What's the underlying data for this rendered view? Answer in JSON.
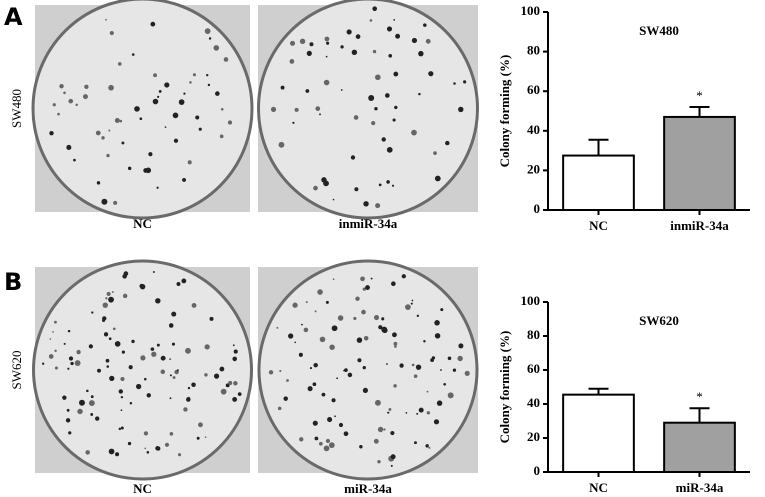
{
  "panels": [
    {
      "label": "A",
      "row_label": "SW480",
      "image_captions": [
        "NC",
        "inmiR-34a"
      ]
    },
    {
      "label": "B",
      "row_label": "SW620",
      "image_captions": [
        "NC",
        "miR-34a"
      ]
    }
  ],
  "chart_data": [
    {
      "type": "bar",
      "title": "SW480",
      "y_label": "Colony forming (%)",
      "categories": [
        "NC",
        "inmiR-34a"
      ],
      "values": [
        27.5,
        47
      ],
      "errors": [
        8,
        5
      ],
      "colors": [
        "#ffffff",
        "#a0a0a0"
      ],
      "annotations": [
        {
          "text": "*",
          "category": "inmiR-34a"
        }
      ],
      "ylim": [
        0,
        100
      ],
      "yticks": [
        0,
        20,
        40,
        60,
        80,
        100
      ]
    },
    {
      "type": "bar",
      "title": "SW620",
      "y_label": "Colony forming (%)",
      "categories": [
        "NC",
        "miR-34a"
      ],
      "values": [
        45.5,
        29
      ],
      "errors": [
        3.5,
        8.5
      ],
      "colors": [
        "#ffffff",
        "#a0a0a0"
      ],
      "annotations": [
        {
          "text": "*",
          "category": "miR-34a"
        }
      ],
      "ylim": [
        0,
        100
      ],
      "yticks": [
        0,
        20,
        40,
        60,
        80,
        100
      ]
    }
  ]
}
